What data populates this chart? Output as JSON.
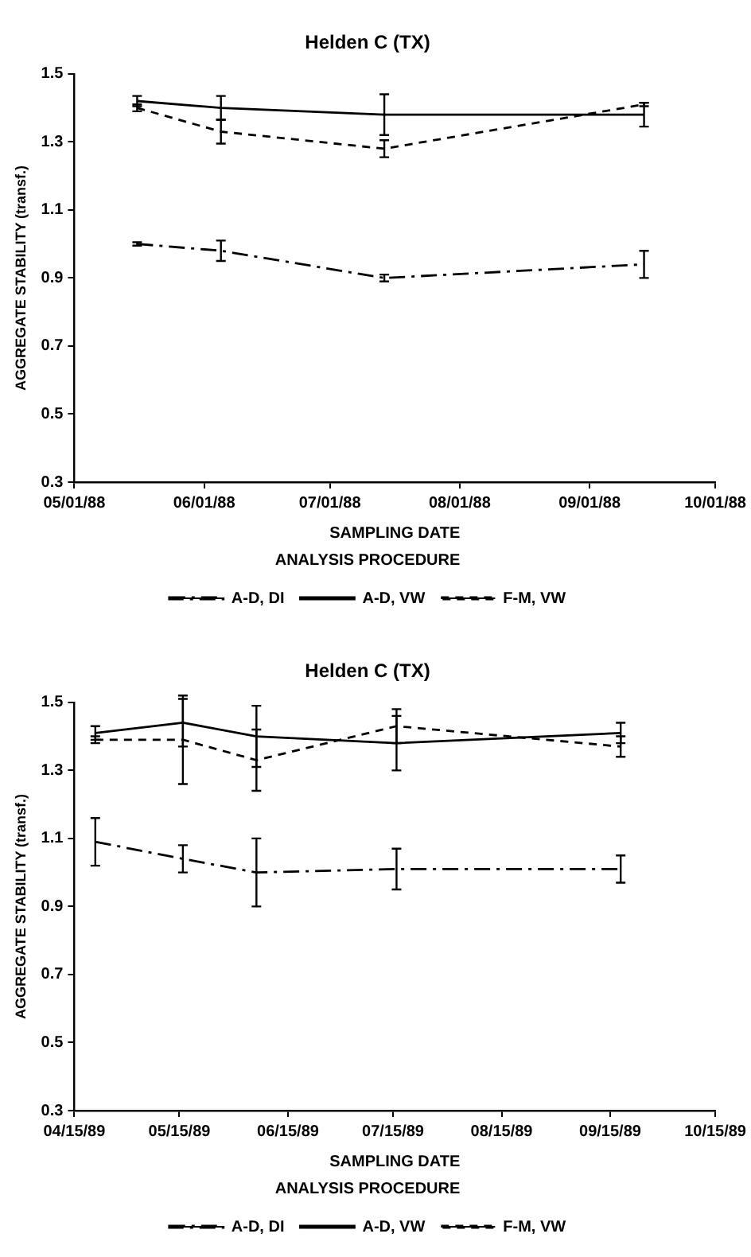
{
  "chart_data": [
    {
      "type": "line",
      "title": "Helden C (TX)",
      "xlabel": "SAMPLING DATE",
      "ylabel": "AGGREGATE STABILITY (transf.)",
      "legend_title": "ANALYSIS PROCEDURE",
      "legend": "bottom",
      "grid": false,
      "marker": "none",
      "x": [
        "1988-05-16",
        "1988-06-05",
        "1988-07-14",
        "1988-09-14"
      ],
      "xlim": [
        "1988-05-01",
        "1988-10-01"
      ],
      "xticks": [
        {
          "value": "1988-05-01",
          "label": "05/01/88"
        },
        {
          "value": "1988-06-01",
          "label": "06/01/88"
        },
        {
          "value": "1988-07-01",
          "label": "07/01/88"
        },
        {
          "value": "1988-08-01",
          "label": "08/01/88"
        },
        {
          "value": "1988-09-01",
          "label": "09/01/88"
        },
        {
          "value": "1988-10-01",
          "label": "10/01/88"
        }
      ],
      "ylim": [
        0.3,
        1.5
      ],
      "yticks": [
        0.3,
        0.5,
        0.7,
        0.9,
        1.1,
        1.3,
        1.5
      ],
      "series": [
        {
          "name": "A-D, DI",
          "color": "#000000",
          "line_style": "dashdot",
          "values": [
            1.0,
            0.98,
            0.9,
            0.94
          ],
          "errors": [
            0.005,
            0.03,
            0.01,
            0.04
          ]
        },
        {
          "name": "A-D, VW",
          "color": "#000000",
          "line_style": "solid",
          "values": [
            1.42,
            1.4,
            1.38,
            1.38
          ],
          "errors": [
            0.015,
            0.035,
            0.06,
            0.035
          ]
        },
        {
          "name": "F-M, VW",
          "color": "#000000",
          "line_style": "dashed",
          "values": [
            1.4,
            1.33,
            1.28,
            1.41
          ],
          "errors": [
            0.01,
            0.035,
            0.025,
            0.005
          ]
        }
      ]
    },
    {
      "type": "line",
      "title": "Helden C (TX)",
      "xlabel": "SAMPLING DATE",
      "ylabel": "AGGREGATE STABILITY (transf.)",
      "legend_title": "ANALYSIS PROCEDURE",
      "legend": "bottom",
      "grid": false,
      "marker": "none",
      "x": [
        "1989-04-21",
        "1989-05-16",
        "1989-06-06",
        "1989-07-16",
        "1989-09-18"
      ],
      "xlim": [
        "1989-04-15",
        "1989-10-15"
      ],
      "xticks": [
        {
          "value": "1989-04-15",
          "label": "04/15/89"
        },
        {
          "value": "1989-05-15",
          "label": "05/15/89"
        },
        {
          "value": "1989-06-15",
          "label": "06/15/89"
        },
        {
          "value": "1989-07-15",
          "label": "07/15/89"
        },
        {
          "value": "1989-08-15",
          "label": "08/15/89"
        },
        {
          "value": "1989-09-15",
          "label": "09/15/89"
        },
        {
          "value": "1989-10-15",
          "label": "10/15/89"
        }
      ],
      "ylim": [
        0.3,
        1.5
      ],
      "yticks": [
        0.3,
        0.5,
        0.7,
        0.9,
        1.1,
        1.3,
        1.5
      ],
      "series": [
        {
          "name": "A-D, DI",
          "color": "#000000",
          "line_style": "dashdot",
          "values": [
            1.09,
            1.04,
            1.0,
            1.01,
            1.01
          ],
          "errors": [
            0.07,
            0.04,
            0.1,
            0.06,
            0.04
          ]
        },
        {
          "name": "A-D, VW",
          "color": "#000000",
          "line_style": "solid",
          "values": [
            1.41,
            1.44,
            1.4,
            1.38,
            1.41
          ],
          "errors": [
            0.02,
            0.07,
            0.09,
            0.08,
            0.03
          ]
        },
        {
          "name": "F-M, VW",
          "color": "#000000",
          "line_style": "dashed",
          "values": [
            1.39,
            1.39,
            1.33,
            1.43,
            1.37
          ],
          "errors": [
            0.01,
            0.13,
            0.09,
            0.05,
            0.03
          ]
        }
      ]
    }
  ]
}
